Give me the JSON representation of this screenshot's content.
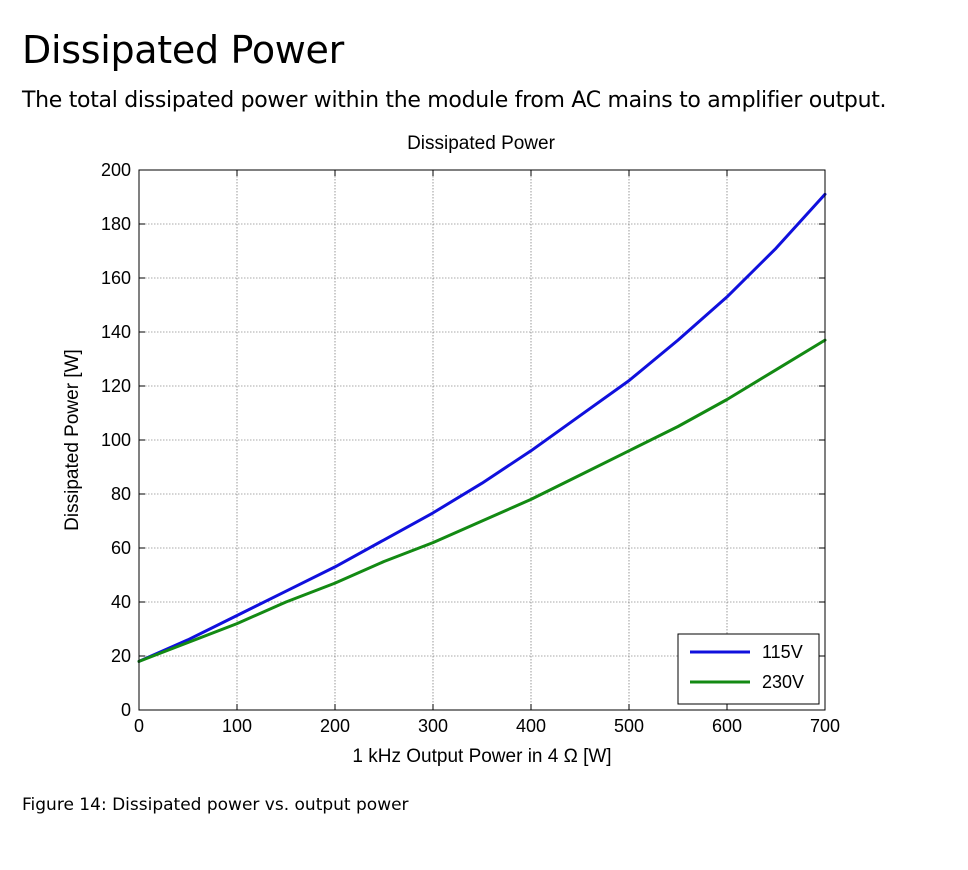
{
  "page": {
    "title": "Dissipated Power",
    "subtitle": "The total dissipated power within the module from AC mains to amplifier output.",
    "caption": "Figure 14: Dissipated power vs. output power"
  },
  "chart_data": {
    "type": "line",
    "title": "Dissipated Power",
    "xlabel": "1 kHz Output Power in 4 Ω [W]",
    "ylabel": "Dissipated Power [W]",
    "xlim": [
      0,
      700
    ],
    "ylim": [
      0,
      200
    ],
    "xticks": [
      0,
      100,
      200,
      300,
      400,
      500,
      600,
      700
    ],
    "yticks": [
      0,
      20,
      40,
      60,
      80,
      100,
      120,
      140,
      160,
      180,
      200
    ],
    "grid": true,
    "legend_position": "bottom-right",
    "x": [
      0,
      50,
      100,
      150,
      200,
      250,
      300,
      350,
      400,
      450,
      500,
      550,
      600,
      650,
      700
    ],
    "series": [
      {
        "name": "115V",
        "color": "#1010dd",
        "values": [
          18,
          26,
          35,
          44,
          53,
          63,
          73,
          84,
          96,
          109,
          122,
          137,
          153,
          171,
          191
        ]
      },
      {
        "name": "230V",
        "color": "#138a13",
        "values": [
          18,
          25,
          32,
          40,
          47,
          55,
          62,
          70,
          78,
          87,
          96,
          105,
          115,
          126,
          137
        ]
      }
    ]
  }
}
